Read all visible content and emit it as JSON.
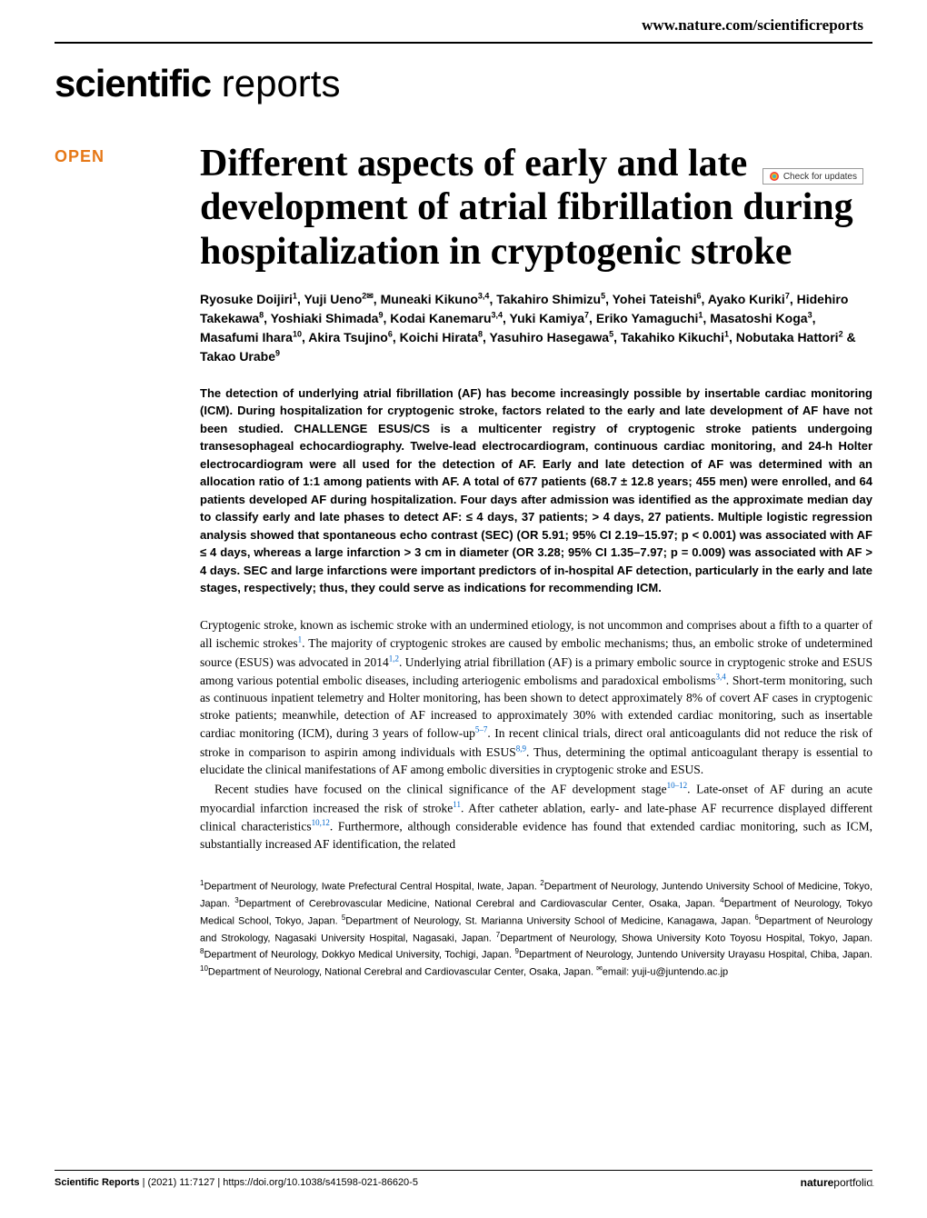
{
  "journal_url": "www.nature.com/scientificreports",
  "logo": {
    "bold": "scientific",
    "light": " reports"
  },
  "check_updates": "Check for updates",
  "open_badge": "OPEN",
  "title": "Different aspects of early and late development of atrial fibrillation during hospitalization in cryptogenic stroke",
  "authors_html": "Ryosuke Doijiri<sup>1</sup>, Yuji Ueno<sup>2✉</sup>, Muneaki Kikuno<sup>3,4</sup>, Takahiro Shimizu<sup>5</sup>, Yohei Tateishi<sup>6</sup>, Ayako Kuriki<sup>7</sup>, Hidehiro Takekawa<sup>8</sup>, Yoshiaki Shimada<sup>9</sup>, Kodai Kanemaru<sup>3,4</sup>, Yuki Kamiya<sup>7</sup>, Eriko Yamaguchi<sup>1</sup>, Masatoshi Koga<sup>3</sup>, Masafumi Ihara<sup>10</sup>, Akira Tsujino<sup>6</sup>, Koichi Hirata<sup>8</sup>, Yasuhiro Hasegawa<sup>5</sup>, Takahiko Kikuchi<sup>1</sup>, Nobutaka Hattori<sup>2</sup> & Takao Urabe<sup>9</sup>",
  "abstract": "The detection of underlying atrial fibrillation (AF) has become increasingly possible by insertable cardiac monitoring (ICM). During hospitalization for cryptogenic stroke, factors related to the early and late development of AF have not been studied. CHALLENGE ESUS/CS is a multicenter registry of cryptogenic stroke patients undergoing transesophageal echocardiography. Twelve-lead electrocardiogram, continuous cardiac monitoring, and 24-h Holter electrocardiogram were all used for the detection of AF. Early and late detection of AF was determined with an allocation ratio of 1:1 among patients with AF. A total of 677 patients (68.7 ± 12.8 years; 455 men) were enrolled, and 64 patients developed AF during hospitalization. Four days after admission was identified as the approximate median day to classify early and late phases to detect AF: ≤ 4 days, 37 patients; > 4 days, 27 patients. Multiple logistic regression analysis showed that spontaneous echo contrast (SEC) (OR 5.91; 95% CI 2.19–15.97; p < 0.001) was associated with AF ≤ 4 days, whereas a large infarction > 3 cm in diameter (OR 3.28; 95% CI 1.35–7.97; p = 0.009) was associated with AF > 4 days. SEC and large infarctions were important predictors of in-hospital AF detection, particularly in the early and late stages, respectively; thus, they could serve as indications for recommending ICM.",
  "body_para1": "Cryptogenic stroke, known as ischemic stroke with an undermined etiology, is not uncommon and comprises about a fifth to a quarter of all ischemic strokes<sup>1</sup>. The majority of cryptogenic strokes are caused by embolic mechanisms; thus, an embolic stroke of undetermined source (ESUS) was advocated in 2014<sup>1,2</sup>. Underlying atrial fibrillation (AF) is a primary embolic source in cryptogenic stroke and ESUS among various potential embolic diseases, including arteriogenic embolisms and paradoxical embolisms<sup>3,4</sup>. Short-term monitoring, such as continuous inpatient telemetry and Holter monitoring, has been shown to detect approximately 8% of covert AF cases in cryptogenic stroke patients; meanwhile, detection of AF increased to approximately 30% with extended cardiac monitoring, such as insertable cardiac monitoring (ICM), during 3 years of follow-up<sup>5–7</sup>. In recent clinical trials, direct oral anticoagulants did not reduce the risk of stroke in comparison to aspirin among individuals with ESUS<sup>8,9</sup>. Thus, determining the optimal anticoagulant therapy is essential to elucidate the clinical manifestations of AF among embolic diversities in cryptogenic stroke and ESUS.",
  "body_para2": "Recent studies have focused on the clinical significance of the AF development stage<sup>10–12</sup>. Late-onset of AF during an acute myocardial infarction increased the risk of stroke<sup>11</sup>. After catheter ablation, early- and late-phase AF recurrence displayed different clinical characteristics<sup>10,12</sup>. Furthermore, although considerable evidence has found that extended cardiac monitoring, such as ICM, substantially increased AF identification, the related",
  "affiliations": "<sup>1</sup>Department of Neurology, Iwate Prefectural Central Hospital, Iwate, Japan. <sup>2</sup>Department of Neurology, Juntendo University School of Medicine, Tokyo, Japan. <sup>3</sup>Department of Cerebrovascular Medicine, National Cerebral and Cardiovascular Center, Osaka, Japan. <sup>4</sup>Department of Neurology, Tokyo Medical School, Tokyo, Japan. <sup>5</sup>Department of Neurology, St. Marianna University School of Medicine, Kanagawa, Japan. <sup>6</sup>Department of Neurology and Strokology, Nagasaki University Hospital, Nagasaki, Japan. <sup>7</sup>Department of Neurology, Showa University Koto Toyosu Hospital, Tokyo, Japan. <sup>8</sup>Department of Neurology, Dokkyo Medical University, Tochigi, Japan. <sup>9</sup>Department of Neurology, Juntendo University Urayasu Hospital, Chiba, Japan. <sup>10</sup>Department of Neurology, National Cerebral and Cardiovascular Center, Osaka, Japan. <sup>✉</sup>email: yuji-u@juntendo.ac.jp",
  "footer": {
    "journal": "Scientific Reports",
    "citation": "|         (2021) 11:7127  |",
    "doi": "https://doi.org/10.1038/s41598-021-86620-5",
    "publisher_bold": "nature",
    "publisher_light": "portfolio",
    "page": "1"
  },
  "colors": {
    "open_badge": "#e67817",
    "ref_link": "#0066cc",
    "text": "#000000",
    "background": "#ffffff",
    "page_num": "#888888"
  }
}
